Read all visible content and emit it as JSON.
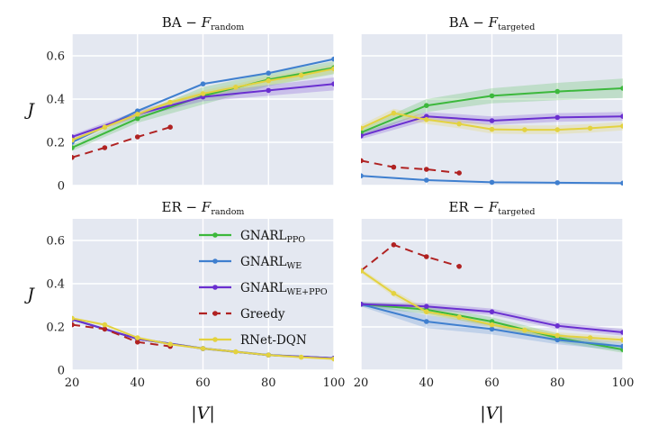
{
  "chart_data": {
    "type": "line",
    "xlabel": "|V|",
    "ylabel": "J",
    "xlim": [
      20,
      100
    ],
    "ylim": [
      0,
      0.7
    ],
    "xticks": [
      20,
      40,
      60,
      80,
      100
    ],
    "yticks": [
      0,
      0.2,
      0.4,
      0.6
    ],
    "ytick_labels": [
      "0",
      "0.2",
      "0.4",
      "0.6"
    ],
    "legend": {
      "placement": "inside lower-left panel, right side",
      "entries": [
        {
          "key": "ppo",
          "base": "GNARL",
          "sub": "PPO",
          "color": "#3cb83c",
          "dash": "solid"
        },
        {
          "key": "we",
          "base": "GNARL",
          "sub": "WE",
          "color": "#3f7fcf",
          "dash": "solid"
        },
        {
          "key": "weppo",
          "base": "GNARL",
          "sub": "WE+PPO",
          "color": "#6a2fd0",
          "dash": "solid"
        },
        {
          "key": "greedy",
          "base": "Greedy",
          "sub": "",
          "color": "#b02222",
          "dash": "dashed"
        },
        {
          "key": "rnet",
          "base": "RNet-DQN",
          "sub": "",
          "color": "#e3d240",
          "dash": "solid"
        }
      ]
    },
    "panels": [
      {
        "id": "ba-random",
        "title_main": "BA − F",
        "title_sub": "random",
        "series": [
          {
            "key": "ppo",
            "x": [
              20,
              40,
              60,
              80,
              100
            ],
            "y": [
              0.175,
              0.31,
              0.415,
              0.49,
              0.545
            ],
            "band": [
              0.015,
              0.02,
              0.04,
              0.03,
              0.03
            ]
          },
          {
            "key": "we",
            "x": [
              20,
              40,
              60,
              80,
              100
            ],
            "y": [
              0.2,
              0.345,
              0.47,
              0.52,
              0.585
            ],
            "band": [
              0.005,
              0.005,
              0.005,
              0.005,
              0.005
            ]
          },
          {
            "key": "weppo",
            "x": [
              20,
              40,
              60,
              80,
              100
            ],
            "y": [
              0.225,
              0.33,
              0.41,
              0.44,
              0.47
            ],
            "band": [
              0.01,
              0.015,
              0.02,
              0.025,
              0.03
            ]
          },
          {
            "key": "greedy",
            "x": [
              20,
              30,
              40,
              50
            ],
            "y": [
              0.13,
              0.175,
              0.225,
              0.27
            ],
            "band": null
          },
          {
            "key": "rnet",
            "x": [
              20,
              30,
              40,
              50,
              60,
              70,
              80,
              90,
              100
            ],
            "y": [
              0.21,
              0.27,
              0.33,
              0.385,
              0.425,
              0.455,
              0.485,
              0.51,
              0.54
            ],
            "band": [
              0.01,
              0.01,
              0.01,
              0.01,
              0.015,
              0.015,
              0.02,
              0.02,
              0.02
            ]
          }
        ]
      },
      {
        "id": "ba-targeted",
        "title_main": "BA − F",
        "title_sub": "targeted",
        "series": [
          {
            "key": "ppo",
            "x": [
              20,
              40,
              60,
              80,
              100
            ],
            "y": [
              0.245,
              0.37,
              0.415,
              0.435,
              0.45
            ],
            "band": [
              0.02,
              0.03,
              0.035,
              0.04,
              0.045
            ]
          },
          {
            "key": "we",
            "x": [
              20,
              40,
              60,
              80,
              100
            ],
            "y": [
              0.045,
              0.025,
              0.015,
              0.013,
              0.011
            ],
            "band": [
              0.003,
              0.003,
              0.003,
              0.003,
              0.003
            ]
          },
          {
            "key": "weppo",
            "x": [
              20,
              40,
              60,
              80,
              100
            ],
            "y": [
              0.23,
              0.32,
              0.3,
              0.315,
              0.32
            ],
            "band": [
              0.015,
              0.02,
              0.02,
              0.02,
              0.02
            ]
          },
          {
            "key": "greedy",
            "x": [
              20,
              30,
              40,
              50
            ],
            "y": [
              0.115,
              0.085,
              0.075,
              0.058
            ],
            "band": null
          },
          {
            "key": "rnet",
            "x": [
              20,
              30,
              40,
              50,
              60,
              70,
              80,
              90,
              100
            ],
            "y": [
              0.265,
              0.335,
              0.305,
              0.285,
              0.26,
              0.258,
              0.258,
              0.265,
              0.275
            ],
            "band": [
              0.015,
              0.02,
              0.02,
              0.02,
              0.02,
              0.02,
              0.02,
              0.02,
              0.02
            ]
          }
        ]
      },
      {
        "id": "er-random",
        "title_main": "ER − F",
        "title_sub": "random",
        "series": [
          {
            "key": "ppo",
            "x": [
              20,
              40,
              60,
              80,
              100
            ],
            "y": [
              0.235,
              0.145,
              0.1,
              0.07,
              0.055
            ],
            "band": [
              0.005,
              0.005,
              0.005,
              0.005,
              0.005
            ]
          },
          {
            "key": "we",
            "x": [
              20,
              40,
              60,
              80,
              100
            ],
            "y": [
              0.235,
              0.145,
              0.1,
              0.07,
              0.055
            ],
            "band": [
              0.005,
              0.005,
              0.005,
              0.005,
              0.005
            ]
          },
          {
            "key": "weppo",
            "x": [
              20,
              40,
              60,
              80,
              100
            ],
            "y": [
              0.235,
              0.145,
              0.1,
              0.07,
              0.055
            ],
            "band": [
              0.005,
              0.005,
              0.005,
              0.005,
              0.005
            ]
          },
          {
            "key": "greedy",
            "x": [
              20,
              30,
              40,
              50
            ],
            "y": [
              0.21,
              0.19,
              0.13,
              0.11
            ],
            "band": null
          },
          {
            "key": "rnet",
            "x": [
              20,
              30,
              40,
              50,
              60,
              70,
              80,
              90,
              100
            ],
            "y": [
              0.24,
              0.21,
              0.15,
              0.12,
              0.1,
              0.085,
              0.07,
              0.06,
              0.052
            ],
            "band": [
              0.005,
              0.005,
              0.005,
              0.005,
              0.005,
              0.005,
              0.005,
              0.005,
              0.005
            ]
          }
        ]
      },
      {
        "id": "er-targeted",
        "title_main": "ER − F",
        "title_sub": "targeted",
        "series": [
          {
            "key": "ppo",
            "x": [
              20,
              40,
              60,
              80,
              100
            ],
            "y": [
              0.305,
              0.28,
              0.225,
              0.15,
              0.095
            ],
            "band": [
              0.01,
              0.02,
              0.02,
              0.02,
              0.015
            ]
          },
          {
            "key": "we",
            "x": [
              20,
              40,
              60,
              80,
              100
            ],
            "y": [
              0.305,
              0.225,
              0.19,
              0.14,
              0.11
            ],
            "band": [
              0.01,
              0.03,
              0.025,
              0.02,
              0.02
            ]
          },
          {
            "key": "weppo",
            "x": [
              20,
              40,
              60,
              80,
              100
            ],
            "y": [
              0.305,
              0.295,
              0.27,
              0.205,
              0.175
            ],
            "band": [
              0.01,
              0.015,
              0.015,
              0.015,
              0.015
            ]
          },
          {
            "key": "greedy",
            "x": [
              20,
              30,
              40,
              50
            ],
            "y": [
              0.46,
              0.58,
              0.525,
              0.48
            ],
            "band": null
          },
          {
            "key": "rnet",
            "x": [
              20,
              30,
              40,
              50,
              60,
              70,
              80,
              90,
              100
            ],
            "y": [
              0.46,
              0.355,
              0.27,
              0.245,
              0.21,
              0.185,
              0.16,
              0.15,
              0.14
            ],
            "band": [
              0.01,
              0.015,
              0.015,
              0.015,
              0.015,
              0.015,
              0.015,
              0.015,
              0.015
            ]
          }
        ]
      }
    ]
  }
}
